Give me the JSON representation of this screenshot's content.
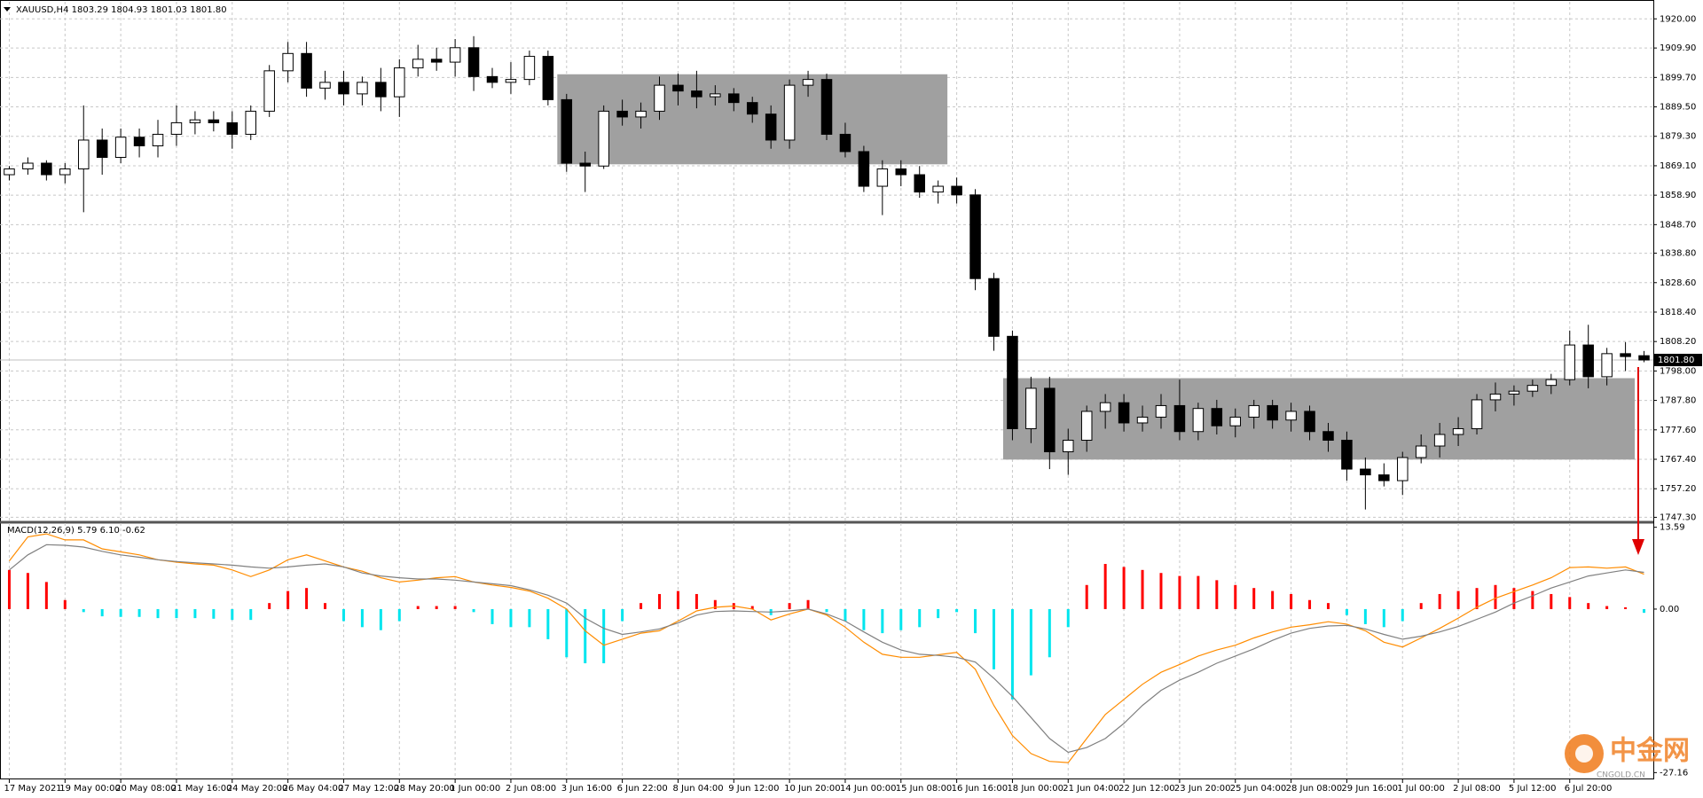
{
  "chart_data": [
    {
      "type": "candlestick",
      "title": "XAUUSD,H4  1803.29 1804.93 1801.03 1801.80",
      "categories": [
        "17 May 2021",
        null,
        null,
        "19 May 00:00",
        null,
        null,
        "20 May 08:00",
        null,
        null,
        "21 May 16:00",
        null,
        null,
        "24 May 20:00",
        null,
        null,
        "26 May 04:00",
        null,
        null,
        "27 May 12:00",
        null,
        null,
        "28 May 20:00",
        null,
        null,
        "1 Jun 00:00",
        null,
        null,
        "2 Jun 08:00",
        null,
        null,
        "3 Jun 16:00",
        null,
        null,
        "6 Jun 22:00",
        null,
        null,
        "8 Jun 04:00",
        null,
        null,
        "9 Jun 12:00",
        null,
        null,
        "10 Jun 20:00",
        null,
        null,
        "14 Jun 00:00",
        null,
        null,
        "15 Jun 08:00",
        null,
        null,
        "16 Jun 16:00",
        null,
        null,
        "18 Jun 00:00",
        null,
        null,
        "21 Jun 04:00",
        null,
        null,
        "22 Jun 12:00",
        null,
        null,
        "23 Jun 20:00",
        null,
        null,
        "25 Jun 04:00",
        null,
        null,
        "28 Jun 08:00",
        null,
        null,
        "29 Jun 16:00",
        null,
        null,
        "1 Jul 00:00",
        null,
        null,
        "2 Jul 08:00",
        null,
        null,
        "5 Jul 12:00",
        null,
        null,
        "6 Jul 20:00",
        null,
        null,
        null,
        null
      ],
      "open": [
        1866,
        1868,
        1870,
        1866,
        1868,
        1878,
        1872,
        1879,
        1876,
        1880,
        1884,
        1885,
        1884,
        1880,
        1888,
        1902,
        1908,
        1896,
        1898,
        1894,
        1898,
        1893,
        1903,
        1906,
        1905,
        1910,
        1900,
        1898,
        1899,
        1907,
        1892,
        1870,
        1869,
        1888,
        1886,
        1888,
        1897,
        1895,
        1893,
        1894,
        1891,
        1887,
        1878,
        1897,
        1899,
        1880,
        1874,
        1862,
        1868,
        1866,
        1860,
        1862,
        1859,
        1830,
        1810,
        1778,
        1792,
        1770,
        1774,
        1784,
        1787,
        1780,
        1782,
        1786,
        1777,
        1785,
        1779,
        1782,
        1786,
        1781,
        1784,
        1777,
        1774,
        1764,
        1762,
        1760,
        1768,
        1772,
        1776,
        1778,
        1788,
        1790,
        1791,
        1793,
        1795,
        1807,
        1796,
        1804,
        1803.29
      ],
      "high": [
        1869,
        1872,
        1871,
        1870,
        1890,
        1882,
        1882,
        1882,
        1885,
        1890,
        1888,
        1888,
        1888,
        1890,
        1904,
        1912,
        1912,
        1902,
        1902,
        1900,
        1903,
        1906,
        1911,
        1910,
        1913,
        1914,
        1903,
        1905,
        1909,
        1909,
        1894,
        1874,
        1890,
        1892,
        1891,
        1900,
        1901,
        1902,
        1897,
        1896,
        1893,
        1890,
        1899,
        1902,
        1901,
        1884,
        1876,
        1871,
        1871,
        1869,
        1864,
        1865,
        1861,
        1832,
        1812,
        1796,
        1796,
        1778,
        1786,
        1790,
        1790,
        1786,
        1790,
        1795,
        1787,
        1788,
        1785,
        1788,
        1788,
        1787,
        1786,
        1780,
        1777,
        1768,
        1766,
        1770,
        1776,
        1780,
        1782,
        1790,
        1794,
        1793,
        1795,
        1797,
        1812,
        1814,
        1806,
        1808,
        1804.93
      ],
      "low": [
        1864,
        1866,
        1864,
        1863,
        1853,
        1866,
        1870,
        1872,
        1872,
        1876,
        1880,
        1881,
        1875,
        1878,
        1886,
        1898,
        1893,
        1892,
        1890,
        1890,
        1888,
        1886,
        1900,
        1902,
        1900,
        1895,
        1896,
        1894,
        1897,
        1890,
        1867,
        1860,
        1868,
        1883,
        1882,
        1885,
        1890,
        1889,
        1890,
        1888,
        1884,
        1875,
        1875,
        1893,
        1878,
        1872,
        1860,
        1852,
        1862,
        1858,
        1856,
        1856,
        1826,
        1805,
        1774,
        1773,
        1764,
        1762,
        1770,
        1778,
        1777,
        1777,
        1778,
        1774,
        1774,
        1776,
        1775,
        1778,
        1778,
        1777,
        1774,
        1770,
        1760,
        1750,
        1758,
        1755,
        1766,
        1768,
        1772,
        1776,
        1784,
        1786,
        1789,
        1790,
        1793,
        1792,
        1793,
        1798,
        1801.03
      ],
      "close": [
        1868,
        1870,
        1866,
        1868,
        1878,
        1872,
        1879,
        1876,
        1880,
        1884,
        1885,
        1884,
        1880,
        1888,
        1902,
        1908,
        1896,
        1898,
        1894,
        1898,
        1893,
        1903,
        1906,
        1905,
        1910,
        1900,
        1898,
        1899,
        1907,
        1892,
        1870,
        1869,
        1888,
        1886,
        1888,
        1897,
        1895,
        1893,
        1894,
        1891,
        1887,
        1878,
        1897,
        1899,
        1880,
        1874,
        1862,
        1868,
        1866,
        1860,
        1862,
        1859,
        1830,
        1810,
        1778,
        1792,
        1770,
        1774,
        1784,
        1787,
        1780,
        1782,
        1786,
        1777,
        1785,
        1779,
        1782,
        1786,
        1781,
        1784,
        1777,
        1774,
        1764,
        1762,
        1760,
        1768,
        1772,
        1776,
        1778,
        1788,
        1790,
        1791,
        1793,
        1795,
        1807,
        1796,
        1804,
        1803,
        1801.8
      ],
      "up_color": "#ffffff",
      "down_color": "#000000",
      "outline_color": "#000000",
      "ylim": [
        1746.2,
        1925.3
      ],
      "yticks": [
        {
          "value": 1920,
          "label": "1920.00"
        },
        {
          "value": 1909.9,
          "label": "1909.90"
        },
        {
          "value": 1899.7,
          "label": "1899.70"
        },
        {
          "value": 1889.5,
          "label": "1889.50"
        },
        {
          "value": 1879.3,
          "label": "1879.30"
        },
        {
          "value": 1869.1,
          "label": "1869.10"
        },
        {
          "value": 1858.9,
          "label": "1858.90"
        },
        {
          "value": 1848.7,
          "label": "1848.70"
        },
        {
          "value": 1838.8,
          "label": "1838.80"
        },
        {
          "value": 1828.6,
          "label": "1828.60"
        },
        {
          "value": 1818.4,
          "label": "1818.40"
        },
        {
          "value": 1808.2,
          "label": "1808.20"
        },
        {
          "value": 1798,
          "label": "1798.00"
        },
        {
          "value": 1787.8,
          "label": "1787.80"
        },
        {
          "value": 1777.6,
          "label": "1777.60"
        },
        {
          "value": 1767.4,
          "label": "1767.40"
        },
        {
          "value": 1757.2,
          "label": "1757.20"
        },
        {
          "value": 1747.3,
          "label": "1747.30"
        }
      ],
      "grid": true,
      "last_price": {
        "value": 1801.8,
        "label": "1801.80"
      },
      "zones": [
        {
          "from": 30,
          "to": 50,
          "low": 1869.6,
          "high": 1900.8,
          "color": "#a0a0a0"
        },
        {
          "from": 54,
          "to": 87,
          "low": 1767.3,
          "high": 1795.5,
          "color": "#a0a0a0"
        }
      ]
    },
    {
      "type": "macd",
      "title": "MACD(12,26,9) 5.79 6.10 -0.62",
      "bars": {
        "up_color": "#ff0000",
        "down_color": "#00e5ee",
        "values": [
          6.5,
          6.0,
          4.5,
          1.5,
          -0.5,
          -1.2,
          -1.3,
          -1.3,
          -1.5,
          -1.5,
          -1.5,
          -1.6,
          -1.8,
          -1.8,
          1.0,
          3.0,
          3.5,
          1.0,
          -2.0,
          -3.0,
          -3.5,
          -2.0,
          0.5,
          0.5,
          0.5,
          -0.5,
          -2.5,
          -3.0,
          -3.0,
          -5.0,
          -8.0,
          -9.0,
          -9.0,
          -2.0,
          1.0,
          2.5,
          3.0,
          2.5,
          1.5,
          1.0,
          0.5,
          -1.0,
          1.0,
          1.5,
          -0.5,
          -2.0,
          -3.5,
          -4.0,
          -3.5,
          -3.0,
          -1.5,
          -0.5,
          -4.0,
          -10.0,
          -15.0,
          -11.0,
          -8.0,
          -3.0,
          4.0,
          7.5,
          7.0,
          6.5,
          6.0,
          5.5,
          5.5,
          4.8,
          4.0,
          3.5,
          3.0,
          2.5,
          1.5,
          1.0,
          -1.0,
          -2.5,
          -3.0,
          -2.0,
          1.0,
          2.5,
          3.0,
          3.5,
          4.0,
          3.5,
          3.0,
          2.5,
          2.0,
          1.0,
          0.5,
          0.3,
          -0.62
        ]
      },
      "lines": [
        {
          "color": "#ff8c00",
          "values": [
            8.0,
            12.0,
            12.5,
            11.5,
            11.5,
            10.0,
            9.5,
            9.0,
            8.2,
            7.8,
            7.5,
            7.3,
            6.5,
            5.4,
            6.5,
            8.2,
            9.0,
            8.0,
            7.0,
            6.3,
            5.2,
            4.5,
            4.8,
            5.2,
            5.4,
            4.5,
            4.0,
            3.6,
            3.0,
            1.8,
            0.0,
            -3.6,
            -6.0,
            -5.0,
            -4.0,
            -3.6,
            -2.0,
            -0.3,
            0.3,
            0.5,
            0.0,
            -1.8,
            -0.8,
            0.0,
            -1.0,
            -3.0,
            -5.5,
            -7.5,
            -8.0,
            -8.0,
            -7.6,
            -7.2,
            -10.0,
            -16.0,
            -21.0,
            -24.0,
            -25.3,
            -25.5,
            -21.5,
            -17.5,
            -15.0,
            -12.5,
            -10.5,
            -9.2,
            -7.8,
            -6.8,
            -6.0,
            -4.8,
            -3.8,
            -3.0,
            -2.6,
            -2.1,
            -2.5,
            -3.6,
            -5.5,
            -6.3,
            -4.8,
            -3.2,
            -1.5,
            0.3,
            1.8,
            2.9,
            4.0,
            5.2,
            6.9,
            7.0,
            6.8,
            7.0,
            5.79
          ]
        },
        {
          "color": "#808080",
          "values": [
            6.5,
            9.0,
            10.7,
            10.6,
            10.3,
            9.6,
            9.0,
            8.6,
            8.2,
            7.9,
            7.7,
            7.5,
            7.3,
            7.0,
            6.8,
            7.0,
            7.3,
            7.5,
            7.0,
            6.0,
            5.5,
            5.2,
            5.0,
            5.0,
            4.8,
            4.5,
            4.2,
            3.9,
            3.2,
            2.3,
            1.0,
            -1.5,
            -3.2,
            -4.2,
            -3.8,
            -3.3,
            -2.3,
            -1.0,
            -0.4,
            -0.3,
            -0.4,
            -0.5,
            -0.3,
            0.0,
            -0.8,
            -2.0,
            -3.8,
            -5.5,
            -6.8,
            -7.5,
            -7.7,
            -8.0,
            -8.8,
            -11.5,
            -14.5,
            -18.0,
            -21.5,
            -23.8,
            -23.0,
            -21.5,
            -19.0,
            -16.0,
            -13.5,
            -11.8,
            -10.5,
            -9.0,
            -7.8,
            -6.6,
            -5.2,
            -4.0,
            -3.2,
            -2.8,
            -2.7,
            -3.3,
            -4.2,
            -5.0,
            -4.5,
            -3.8,
            -2.9,
            -1.7,
            -0.5,
            1.0,
            2.2,
            3.5,
            4.5,
            5.5,
            6.0,
            6.5,
            6.1
          ]
        }
      ],
      "ylim": [
        -27.55,
        14.13
      ],
      "yticks": [
        13.59,
        {
          "value": 0,
          "label": "0.00"
        },
        -27.16
      ]
    }
  ],
  "watermark": {
    "brand": "中金网",
    "site": "CNGOLD.CN"
  }
}
